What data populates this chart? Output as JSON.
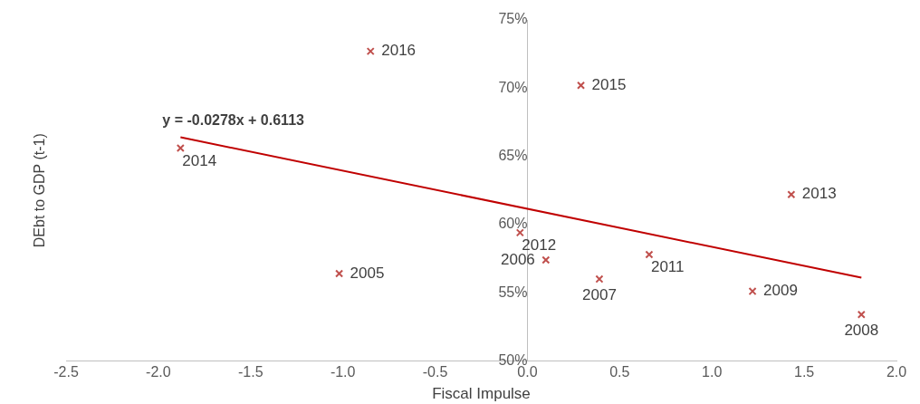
{
  "chart_data": {
    "type": "scatter",
    "xlabel": "Fiscal Impulse",
    "ylabel": "DEbt to GDP (t-1)",
    "xlim": [
      -2.5,
      2.0
    ],
    "xticks": [
      {
        "value": -2.5,
        "label": "-2.5"
      },
      {
        "value": -2,
        "label": "-2.0"
      },
      {
        "value": -1.5,
        "label": "-1.5"
      },
      {
        "value": -1,
        "label": "-1.0"
      },
      {
        "value": -0.5,
        "label": "-0.5"
      },
      {
        "value": 0,
        "label": "0.0"
      },
      {
        "value": 0.5,
        "label": "0.5"
      },
      {
        "value": 1,
        "label": "1.0"
      },
      {
        "value": 1.5,
        "label": "1.5"
      },
      {
        "value": 2,
        "label": "2.0"
      }
    ],
    "ylim": [
      50,
      75
    ],
    "yticks": [
      {
        "value": 50,
        "label": "50%"
      },
      {
        "value": 55,
        "label": "55%"
      },
      {
        "value": 60,
        "label": "60%"
      },
      {
        "value": 65,
        "label": "65%"
      },
      {
        "value": 70,
        "label": "70%"
      },
      {
        "value": 75,
        "label": "75%"
      }
    ],
    "series": [
      {
        "color": "#c0504d",
        "marker": "cross",
        "x": [
          -1.02,
          0.1,
          0.39,
          1.81,
          1.22,
          0.66,
          -0.04,
          1.43,
          -1.88,
          0.29,
          -0.85
        ],
        "values": [
          56.4,
          57.4,
          56.0,
          53.4,
          55.1,
          57.8,
          59.4,
          62.2,
          65.6,
          70.2,
          72.7
        ]
      },
      {
        "type": "line",
        "color": "#c00000",
        "x": [
          -1.88,
          1.81
        ],
        "values": [
          66.4,
          56.1
        ]
      }
    ],
    "annotations": [
      "y = -0.0278x + 0.6113",
      {
        "text": "2005",
        "x": -1.02,
        "y": 56.4
      },
      {
        "text": "2006",
        "x": 0.1,
        "y": 57.4
      },
      {
        "text": "2007",
        "x": 0.39,
        "y": 56.0
      },
      {
        "text": "2008",
        "x": 1.81,
        "y": 53.4
      },
      {
        "text": "2009",
        "x": 1.22,
        "y": 55.1
      },
      {
        "text": "2011",
        "x": 0.66,
        "y": 57.8
      },
      {
        "text": "2012",
        "x": -0.04,
        "y": 59.4
      },
      {
        "text": "2013",
        "x": 1.43,
        "y": 62.2
      },
      {
        "text": "2014",
        "x": -1.88,
        "y": 65.6
      },
      {
        "text": "2015",
        "x": 0.29,
        "y": 70.2
      },
      {
        "text": "2016",
        "x": -0.85,
        "y": 72.7
      }
    ]
  }
}
